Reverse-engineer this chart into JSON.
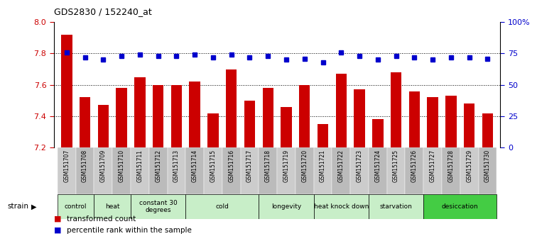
{
  "title": "GDS2830 / 152240_at",
  "samples": [
    "GSM151707",
    "GSM151708",
    "GSM151709",
    "GSM151710",
    "GSM151711",
    "GSM151712",
    "GSM151713",
    "GSM151714",
    "GSM151715",
    "GSM151716",
    "GSM151717",
    "GSM151718",
    "GSM151719",
    "GSM151720",
    "GSM151721",
    "GSM151722",
    "GSM151723",
    "GSM151724",
    "GSM151725",
    "GSM151726",
    "GSM151727",
    "GSM151728",
    "GSM151729",
    "GSM151730"
  ],
  "bar_values": [
    7.92,
    7.52,
    7.47,
    7.58,
    7.65,
    7.6,
    7.6,
    7.62,
    7.42,
    7.7,
    7.5,
    7.58,
    7.46,
    7.6,
    7.35,
    7.67,
    7.57,
    7.38,
    7.68,
    7.56,
    7.52,
    7.53,
    7.48,
    7.42
  ],
  "percentile_values": [
    76,
    72,
    70,
    73,
    74,
    73,
    73,
    74,
    72,
    74,
    72,
    73,
    70,
    71,
    68,
    76,
    73,
    70,
    73,
    72,
    70,
    72,
    72,
    71
  ],
  "ylim_left": [
    7.2,
    8.0
  ],
  "ylim_right": [
    0,
    100
  ],
  "yticks_left": [
    7.2,
    7.4,
    7.6,
    7.8,
    8.0
  ],
  "yticks_right": [
    0,
    25,
    50,
    75,
    100
  ],
  "ytick_labels_right": [
    "0",
    "25",
    "50",
    "75",
    "100%"
  ],
  "bar_color": "#cc0000",
  "dot_color": "#0000cc",
  "strain_groups": [
    {
      "label": "control",
      "start": 0,
      "end": 2
    },
    {
      "label": "heat",
      "start": 2,
      "end": 4
    },
    {
      "label": "constant 30\ndegrees",
      "start": 4,
      "end": 7
    },
    {
      "label": "cold",
      "start": 7,
      "end": 11
    },
    {
      "label": "longevity",
      "start": 11,
      "end": 14
    },
    {
      "label": "heat knock down",
      "start": 14,
      "end": 17
    },
    {
      "label": "starvation",
      "start": 17,
      "end": 20
    },
    {
      "label": "desiccation",
      "start": 20,
      "end": 24
    }
  ],
  "group_colors": [
    "#c8eec8",
    "#c8eec8",
    "#c8eec8",
    "#c8eec8",
    "#c8eec8",
    "#c8eec8",
    "#c8eec8",
    "#44cc44"
  ],
  "sample_cell_color": "#cccccc",
  "sample_cell_alt_color": "#bbbbbb"
}
